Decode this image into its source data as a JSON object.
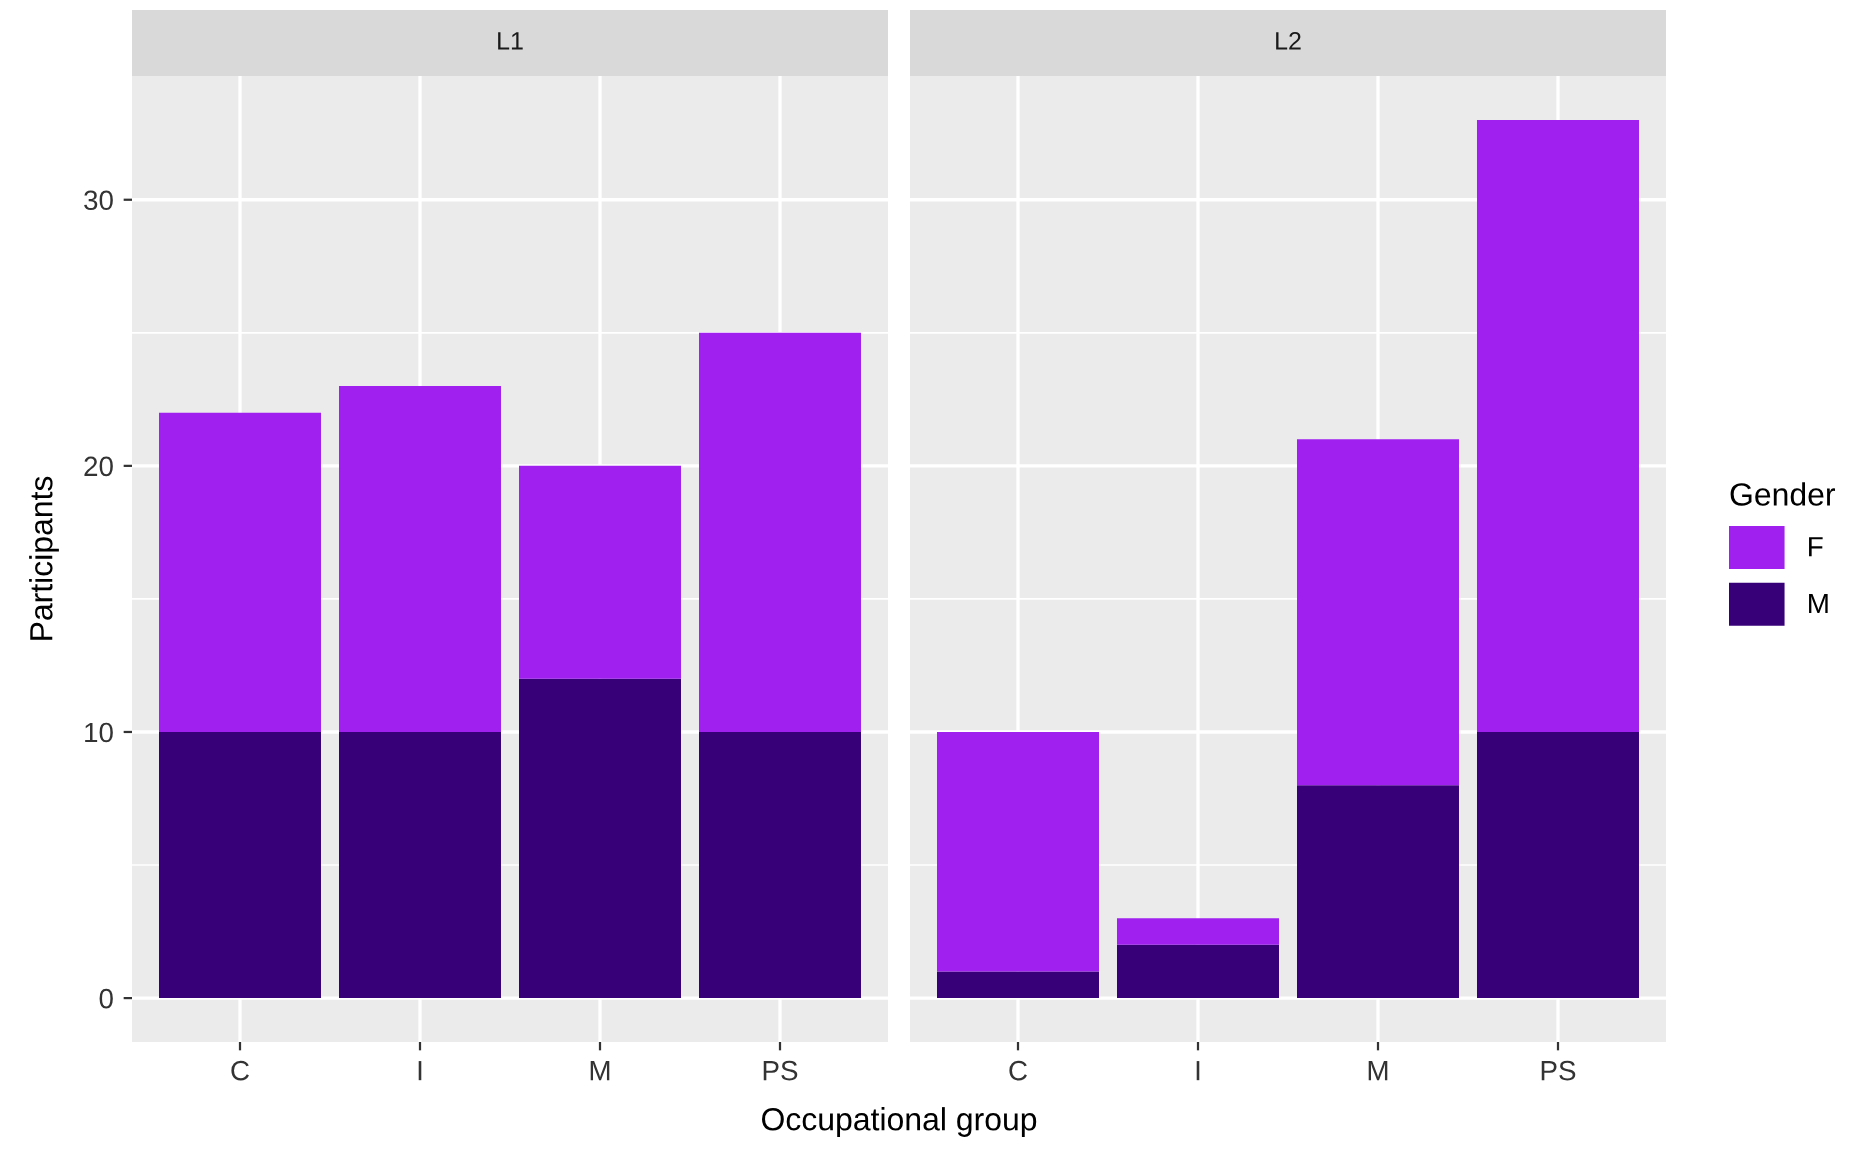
{
  "chart_data": [
    {
      "type": "bar",
      "title": "L1",
      "xlabel": "Occupational group",
      "ylabel": "Participants",
      "categories": [
        "C",
        "I",
        "M",
        "PS"
      ],
      "stacked": true,
      "ylim": [
        -1.65,
        34.65
      ],
      "yticks": [
        0,
        10,
        20,
        30
      ],
      "grid": true,
      "legend": "right",
      "legend_title": "Gender",
      "series": [
        {
          "name": "M",
          "color": "#370078",
          "values": [
            10,
            10,
            12,
            10
          ]
        },
        {
          "name": "F",
          "color": "#a020f0",
          "values": [
            12,
            13,
            8,
            15
          ]
        }
      ]
    },
    {
      "type": "bar",
      "title": "L2",
      "categories": [
        "C",
        "I",
        "M",
        "PS"
      ],
      "stacked": true,
      "ylim": [
        -1.65,
        34.65
      ],
      "yticks": [
        0,
        10,
        20,
        30
      ],
      "grid": true,
      "tick_labels": "x",
      "series": [
        {
          "color": "#370078",
          "values": [
            1,
            2,
            8,
            10
          ]
        },
        {
          "color": "#a020f0",
          "values": [
            9,
            1,
            13,
            23
          ]
        }
      ]
    }
  ]
}
